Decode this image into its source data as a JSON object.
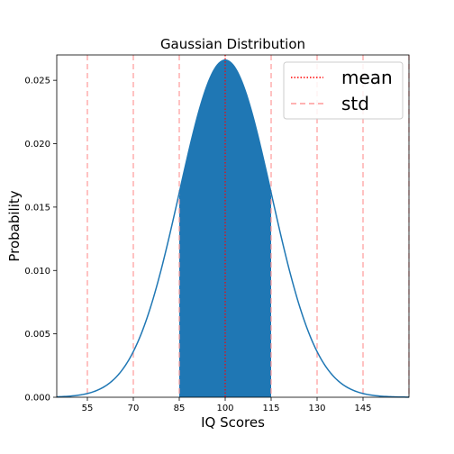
{
  "chart_data": {
    "type": "area",
    "title": "Gaussian Distribution",
    "xlabel": "IQ Scores",
    "ylabel": "Probability",
    "xlim": [
      45,
      160
    ],
    "ylim": [
      0,
      0.027
    ],
    "mean": 100,
    "std": 15,
    "xticks": [
      55,
      70,
      85,
      100,
      115,
      130,
      145
    ],
    "xtick_labels": [
      "55",
      "70",
      "85",
      "100",
      "115",
      "130",
      "145"
    ],
    "yticks": [
      0.0,
      0.005,
      0.01,
      0.015,
      0.02,
      0.025
    ],
    "ytick_labels": [
      "0.000",
      "0.005",
      "0.010",
      "0.015",
      "0.020",
      "0.025"
    ],
    "mean_line_x": 100,
    "std_lines_x": [
      55,
      70,
      85,
      115,
      130,
      145,
      160
    ],
    "shaded_range": [
      85,
      115
    ],
    "legend": {
      "placement": "top-right",
      "entries": [
        {
          "label": "mean",
          "style": "dotted",
          "color": "#ff0000"
        },
        {
          "label": "std",
          "style": "dashed",
          "color": "#ff9999"
        }
      ]
    },
    "colors": {
      "curve": "#1f77b4",
      "fill": "#1f77b4",
      "mean_line": "#ff0000",
      "std_line": "#ff9999"
    },
    "grid": false
  }
}
